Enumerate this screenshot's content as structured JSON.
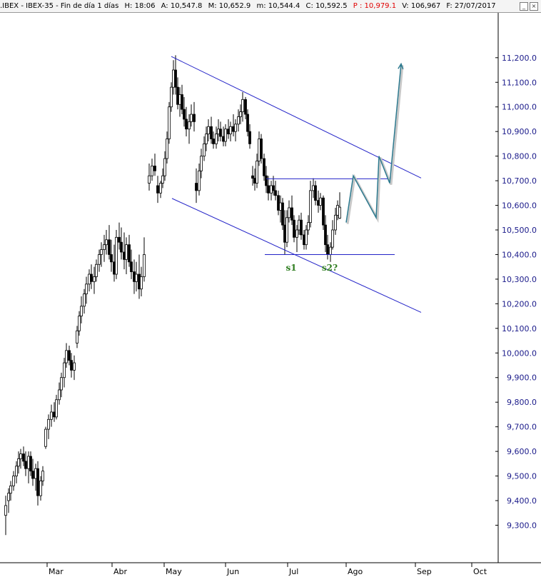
{
  "header": {
    "symbol": ".IBEX - IBEX-35 - Fin de día 1 días",
    "fields": [
      {
        "label": "H:",
        "value": "18:06"
      },
      {
        "label": "A:",
        "value": "10,547.8"
      },
      {
        "label": "M:",
        "value": "10,652.9"
      },
      {
        "label": "m:",
        "value": "10,544.4"
      },
      {
        "label": "C:",
        "value": "10,592.5"
      },
      {
        "label": "P :",
        "value": "10,979.1",
        "color": "#e00000"
      },
      {
        "label": "V:",
        "value": "106,967"
      },
      {
        "label": "F:",
        "value": "27/07/2017"
      }
    ]
  },
  "chart_data": {
    "type": "candlestick",
    "ylim": [
      9165,
      11330
    ],
    "x_domain": [
      0,
      690
    ],
    "y_ticks": [
      {
        "v": 9300,
        "label": "9,300.0"
      },
      {
        "v": 9400,
        "label": "9,400.0"
      },
      {
        "v": 9500,
        "label": "9,500.0"
      },
      {
        "v": 9600,
        "label": "9,600.0"
      },
      {
        "v": 9700,
        "label": "9,700.0"
      },
      {
        "v": 9800,
        "label": "9,800.0"
      },
      {
        "v": 9900,
        "label": "9,900.0"
      },
      {
        "v": 10000,
        "label": "10,000.0"
      },
      {
        "v": 10100,
        "label": "10,100.0"
      },
      {
        "v": 10200,
        "label": "10,200.0"
      },
      {
        "v": 10300,
        "label": "10,300.0"
      },
      {
        "v": 10400,
        "label": "10,400.0"
      },
      {
        "v": 10500,
        "label": "10,500.0"
      },
      {
        "v": 10600,
        "label": "10,600.0"
      },
      {
        "v": 10700,
        "label": "10,700.0"
      },
      {
        "v": 10800,
        "label": "10,800.0"
      },
      {
        "v": 10900,
        "label": "10,900.0"
      },
      {
        "v": 11000,
        "label": "11,000.0"
      },
      {
        "v": 11100,
        "label": "11,100.0"
      },
      {
        "v": 11200,
        "label": "11,200.0"
      }
    ],
    "x_ticks": [
      {
        "x": 66,
        "label": "Mar"
      },
      {
        "x": 157,
        "label": "Abr"
      },
      {
        "x": 230,
        "label": "May"
      },
      {
        "x": 316,
        "label": "Jun"
      },
      {
        "x": 403,
        "label": "Jul"
      },
      {
        "x": 485,
        "label": "Ago"
      },
      {
        "x": 582,
        "label": "Sep"
      },
      {
        "x": 661,
        "label": "Oct"
      }
    ],
    "candles_columns": [
      "x",
      "open",
      "high",
      "low",
      "close"
    ],
    "candles": [
      [
        8,
        9340,
        9420,
        9260,
        9380
      ],
      [
        12,
        9400,
        9450,
        9350,
        9430
      ],
      [
        15,
        9430,
        9480,
        9400,
        9460
      ],
      [
        19,
        9460,
        9520,
        9440,
        9500
      ],
      [
        23,
        9500,
        9560,
        9470,
        9540
      ],
      [
        26,
        9540,
        9600,
        9510,
        9570
      ],
      [
        29,
        9570,
        9610,
        9530,
        9590
      ],
      [
        33,
        9590,
        9620,
        9540,
        9560
      ],
      [
        36,
        9560,
        9600,
        9500,
        9530
      ],
      [
        40,
        9530,
        9600,
        9470,
        9580
      ],
      [
        43,
        9580,
        9600,
        9500,
        9520
      ],
      [
        46,
        9520,
        9570,
        9460,
        9490
      ],
      [
        50,
        9490,
        9550,
        9440,
        9530
      ],
      [
        53,
        9530,
        9560,
        9380,
        9420
      ],
      [
        57,
        9420,
        9500,
        9400,
        9480
      ],
      [
        60,
        9480,
        9540,
        9460,
        9520
      ],
      [
        64,
        9620,
        9700,
        9610,
        9690
      ],
      [
        68,
        9690,
        9750,
        9650,
        9730
      ],
      [
        72,
        9730,
        9790,
        9700,
        9760
      ],
      [
        76,
        9760,
        9800,
        9720,
        9740
      ],
      [
        79,
        9740,
        9830,
        9730,
        9810
      ],
      [
        83,
        9810,
        9880,
        9790,
        9850
      ],
      [
        86,
        9850,
        9920,
        9820,
        9900
      ],
      [
        90,
        9900,
        9980,
        9860,
        9960
      ],
      [
        93,
        9960,
        10040,
        9940,
        10010
      ],
      [
        97,
        10010,
        10030,
        9950,
        9970
      ],
      [
        100,
        9970,
        10000,
        9900,
        9930
      ],
      [
        104,
        9930,
        9990,
        9890,
        9960
      ],
      [
        108,
        10040,
        10110,
        10020,
        10090
      ],
      [
        111,
        10090,
        10170,
        10070,
        10150
      ],
      [
        114,
        10150,
        10230,
        10120,
        10190
      ],
      [
        118,
        10190,
        10260,
        10160,
        10240
      ],
      [
        121,
        10240,
        10310,
        10200,
        10280
      ],
      [
        125,
        10280,
        10340,
        10250,
        10320
      ],
      [
        128,
        10320,
        10360,
        10260,
        10290
      ],
      [
        132,
        10290,
        10350,
        10240,
        10310
      ],
      [
        135,
        10310,
        10380,
        10290,
        10360
      ],
      [
        139,
        10360,
        10420,
        10330,
        10400
      ],
      [
        142,
        10400,
        10450,
        10350,
        10420
      ],
      [
        146,
        10420,
        10480,
        10370,
        10440
      ],
      [
        149,
        10440,
        10500,
        10400,
        10460
      ],
      [
        153,
        10460,
        10520,
        10380,
        10400
      ],
      [
        156,
        10400,
        10460,
        10330,
        10370
      ],
      [
        160,
        10370,
        10440,
        10290,
        10320
      ],
      [
        163,
        10320,
        10500,
        10300,
        10470
      ],
      [
        167,
        10470,
        10530,
        10420,
        10450
      ],
      [
        170,
        10450,
        10510,
        10380,
        10410
      ],
      [
        174,
        10410,
        10490,
        10340,
        10380
      ],
      [
        177,
        10380,
        10470,
        10320,
        10440
      ],
      [
        181,
        10440,
        10480,
        10350,
        10370
      ],
      [
        184,
        10370,
        10420,
        10300,
        10330
      ],
      [
        188,
        10330,
        10380,
        10240,
        10290
      ],
      [
        191,
        10290,
        10370,
        10250,
        10320
      ],
      [
        195,
        10320,
        10400,
        10220,
        10260
      ],
      [
        198,
        10260,
        10350,
        10230,
        10310
      ],
      [
        202,
        10310,
        10470,
        10290,
        10400
      ],
      [
        209,
        10690,
        10770,
        10660,
        10720
      ],
      [
        213,
        10720,
        10790,
        10700,
        10760
      ],
      [
        217,
        10760,
        10810,
        10720,
        10740
      ],
      [
        221,
        10680,
        10720,
        10610,
        10650
      ],
      [
        225,
        10650,
        10700,
        10630,
        10690
      ],
      [
        228,
        10690,
        10750,
        10670,
        10720
      ],
      [
        231,
        10720,
        10820,
        10700,
        10790
      ],
      [
        234,
        10790,
        10900,
        10770,
        10870
      ],
      [
        237,
        10870,
        11020,
        10850,
        11000
      ],
      [
        240,
        11000,
        11100,
        10980,
        11080
      ],
      [
        243,
        11080,
        11190,
        11050,
        11150
      ],
      [
        246,
        11150,
        11210,
        11050,
        11080
      ],
      [
        249,
        11080,
        11120,
        10990,
        11010
      ],
      [
        252,
        11010,
        11080,
        10960,
        11050
      ],
      [
        255,
        11050,
        11090,
        10970,
        10990
      ],
      [
        258,
        10990,
        11040,
        10920,
        10950
      ],
      [
        261,
        10950,
        11000,
        10880,
        10910
      ],
      [
        265,
        10910,
        10970,
        10850,
        10940
      ],
      [
        268,
        10940,
        11010,
        10920,
        10970
      ],
      [
        272,
        10970,
        11020,
        10900,
        10940
      ],
      [
        275,
        10690,
        10750,
        10610,
        10660
      ],
      [
        279,
        10660,
        10770,
        10640,
        10740
      ],
      [
        282,
        10740,
        10830,
        10710,
        10800
      ],
      [
        286,
        10800,
        10880,
        10780,
        10850
      ],
      [
        289,
        10850,
        10920,
        10820,
        10890
      ],
      [
        292,
        10890,
        10950,
        10860,
        10920
      ],
      [
        296,
        10920,
        10960,
        10850,
        10870
      ],
      [
        299,
        10870,
        10900,
        10830,
        10850
      ],
      [
        303,
        10850,
        10920,
        10830,
        10890
      ],
      [
        306,
        10890,
        10950,
        10860,
        10910
      ],
      [
        309,
        10910,
        10940,
        10860,
        10880
      ],
      [
        313,
        10880,
        10920,
        10840,
        10860
      ],
      [
        316,
        10860,
        10930,
        10840,
        10910
      ],
      [
        320,
        10910,
        10950,
        10870,
        10890
      ],
      [
        323,
        10890,
        10940,
        10860,
        10920
      ],
      [
        327,
        10920,
        10970,
        10880,
        10900
      ],
      [
        330,
        10900,
        10950,
        10860,
        10930
      ],
      [
        334,
        10930,
        10990,
        10900,
        10960
      ],
      [
        337,
        10960,
        11010,
        10930,
        10980
      ],
      [
        340,
        10980,
        11060,
        10940,
        11030
      ],
      [
        344,
        11030,
        11040,
        10950,
        10970
      ],
      [
        347,
        10970,
        10990,
        10880,
        10900
      ],
      [
        350,
        10900,
        10930,
        10830,
        10850
      ],
      [
        354,
        10720,
        10760,
        10680,
        10710
      ],
      [
        357,
        10710,
        10750,
        10660,
        10690
      ],
      [
        360,
        10690,
        10810,
        10670,
        10780
      ],
      [
        363,
        10780,
        10900,
        10760,
        10870
      ],
      [
        366,
        10870,
        10890,
        10770,
        10790
      ],
      [
        370,
        10790,
        10810,
        10700,
        10720
      ],
      [
        373,
        10720,
        10760,
        10650,
        10680
      ],
      [
        376,
        10680,
        10720,
        10620,
        10650
      ],
      [
        380,
        10650,
        10700,
        10620,
        10680
      ],
      [
        383,
        10680,
        10720,
        10640,
        10660
      ],
      [
        386,
        10660,
        10700,
        10620,
        10640
      ],
      [
        390,
        10640,
        10660,
        10560,
        10580
      ],
      [
        393,
        10580,
        10640,
        10530,
        10610
      ],
      [
        396,
        10610,
        10630,
        10500,
        10520
      ],
      [
        399,
        10520,
        10580,
        10400,
        10450
      ],
      [
        402,
        10450,
        10580,
        10430,
        10550
      ],
      [
        405,
        10550,
        10620,
        10530,
        10590
      ],
      [
        409,
        10590,
        10640,
        10520,
        10540
      ],
      [
        412,
        10540,
        10560,
        10450,
        10470
      ],
      [
        416,
        10470,
        10520,
        10410,
        10500
      ],
      [
        419,
        10500,
        10560,
        10480,
        10540
      ],
      [
        422,
        10540,
        10570,
        10460,
        10480
      ],
      [
        426,
        10480,
        10500,
        10420,
        10440
      ],
      [
        429,
        10440,
        10520,
        10420,
        10500
      ],
      [
        432,
        10500,
        10560,
        10480,
        10530
      ],
      [
        435,
        10530,
        10700,
        10510,
        10660
      ],
      [
        439,
        10660,
        10710,
        10630,
        10680
      ],
      [
        442,
        10680,
        10700,
        10600,
        10620
      ],
      [
        446,
        10620,
        10660,
        10570,
        10600
      ],
      [
        449,
        10600,
        10650,
        10580,
        10630
      ],
      [
        453,
        10630,
        10640,
        10500,
        10520
      ],
      [
        456,
        10520,
        10560,
        10410,
        10440
      ],
      [
        459,
        10440,
        10480,
        10380,
        10400
      ],
      [
        463,
        10400,
        10450,
        10370,
        10430
      ],
      [
        466,
        10430,
        10540,
        10420,
        10500
      ],
      [
        470,
        10500,
        10590,
        10480,
        10560
      ],
      [
        473,
        10560,
        10620,
        10540,
        10600
      ],
      [
        476,
        10547.8,
        10652.9,
        10544.4,
        10592.5
      ]
    ],
    "trendlines_columns": [
      "x1",
      "y1",
      "x2",
      "y2"
    ],
    "trendlines": [
      [
        240,
        11205,
        590,
        10711
      ],
      [
        241,
        10628,
        590,
        10165
      ],
      [
        373,
        10708,
        550,
        10708
      ],
      [
        371,
        10400,
        553,
        10400
      ]
    ],
    "projection_columns": [
      "x",
      "y"
    ],
    "projection": [
      [
        485,
        10530
      ],
      [
        495,
        10720
      ],
      [
        527,
        10550
      ],
      [
        531,
        10800
      ],
      [
        546,
        10690
      ],
      [
        562,
        11175
      ]
    ],
    "annotations": [
      {
        "text": "s1",
        "x": 408,
        "y": 10335
      },
      {
        "text": "s2?",
        "x": 462,
        "y": 10335
      }
    ],
    "colors": {
      "candle": "#000000",
      "bull_fill": "#ffffff",
      "bear_fill": "#000000",
      "trendline": "#2323c8",
      "projection": "#2d7a8f",
      "annotation": "#2e7d1f",
      "y_tick_label": "#1a1a8a"
    }
  }
}
